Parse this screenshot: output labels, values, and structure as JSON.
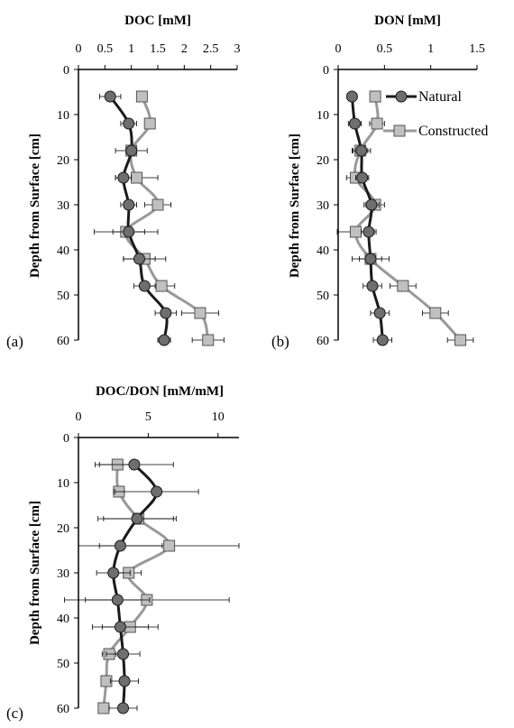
{
  "chart_data": [
    {
      "type": "line",
      "panel_label": "(a)",
      "title": "DOC [mM]",
      "ylabel": "Depth from Surface [cm]",
      "xlim": [
        0,
        3
      ],
      "ylim": [
        0,
        60
      ],
      "x_ticks": [
        "0",
        "0.5",
        "1",
        "1.5",
        "2",
        "2.5",
        "3"
      ],
      "y_ticks": [
        "0",
        "10",
        "20",
        "30",
        "40",
        "50",
        "60"
      ],
      "series": [
        {
          "name": "Natural",
          "color": "#1a1a1a",
          "marker": "circle",
          "depth": [
            6,
            12,
            18,
            24,
            30,
            36,
            42,
            48,
            54,
            60
          ],
          "x": [
            0.6,
            0.95,
            1.0,
            0.85,
            0.95,
            0.95,
            1.15,
            1.25,
            1.65,
            1.62
          ],
          "err": [
            0.2,
            0.15,
            0.1,
            0.15,
            0.15,
            0.3,
            0.3,
            0.2,
            0.2,
            0.12
          ]
        },
        {
          "name": "Constructed",
          "color": "#999999",
          "marker": "square",
          "depth": [
            6,
            12,
            18,
            24,
            30,
            36,
            42,
            48,
            54,
            60
          ],
          "x": [
            1.2,
            1.35,
            1.0,
            1.1,
            1.5,
            0.9,
            1.25,
            1.57,
            2.3,
            2.45
          ],
          "err": [
            0.0,
            0.1,
            0.3,
            0.4,
            0.25,
            0.6,
            0.4,
            0.25,
            0.35,
            0.3
          ]
        }
      ]
    },
    {
      "type": "line",
      "panel_label": "(b)",
      "title": "DON [mM]",
      "ylabel": "Depth from Surface [cm]",
      "xlim": [
        0,
        1.5
      ],
      "ylim": [
        0,
        60
      ],
      "x_ticks": [
        "0",
        "0.5",
        "1",
        "1.5"
      ],
      "y_ticks": [
        "0",
        "10",
        "20",
        "30",
        "40",
        "50",
        "60"
      ],
      "legend": [
        "Natural",
        "Constructed"
      ],
      "legend_position": "top-right",
      "series": [
        {
          "name": "Natural",
          "color": "#1a1a1a",
          "marker": "circle",
          "depth": [
            6,
            12,
            18,
            24,
            30,
            36,
            42,
            48,
            54,
            60
          ],
          "x": [
            0.15,
            0.18,
            0.25,
            0.26,
            0.36,
            0.33,
            0.35,
            0.37,
            0.45,
            0.48
          ],
          "err": [
            0.05,
            0.07,
            0.1,
            0.07,
            0.08,
            0.08,
            0.12,
            0.1,
            0.1,
            0.1
          ]
        },
        {
          "name": "Constructed",
          "color": "#999999",
          "marker": "square",
          "depth": [
            6,
            12,
            18,
            24,
            30,
            36,
            42,
            48,
            54,
            60
          ],
          "x": [
            0.4,
            0.42,
            0.24,
            0.19,
            0.4,
            0.19,
            0.35,
            0.7,
            1.05,
            1.32
          ],
          "err": [
            0.05,
            0.08,
            0.08,
            0.1,
            0.1,
            0.2,
            0.2,
            0.14,
            0.14,
            0.14
          ]
        }
      ]
    },
    {
      "type": "line",
      "panel_label": "(c)",
      "title": "DOC/DON [mM/mM]",
      "ylabel": "Depth from Surface [cm]",
      "xlim": [
        0,
        11.5
      ],
      "ylim": [
        0,
        60
      ],
      "x_ticks": [
        "0",
        "5",
        "10"
      ],
      "x_tick_values": [
        0,
        5,
        10
      ],
      "y_ticks": [
        "0",
        "10",
        "20",
        "30",
        "40",
        "50",
        "60"
      ],
      "series": [
        {
          "name": "Natural",
          "color": "#1a1a1a",
          "marker": "circle",
          "depth": [
            6,
            12,
            18,
            24,
            30,
            36,
            42,
            48,
            54,
            60
          ],
          "x": [
            4.0,
            5.6,
            4.2,
            3.0,
            2.5,
            2.8,
            3.0,
            3.2,
            3.3,
            3.2
          ],
          "err": [
            2.8,
            3.0,
            2.8,
            3.0,
            1.2,
            2.3,
            2.0,
            1.2,
            1.0,
            1.0
          ]
        },
        {
          "name": "Constructed",
          "color": "#999999",
          "marker": "square",
          "depth": [
            6,
            12,
            18,
            24,
            30,
            36,
            42,
            48,
            54,
            60
          ],
          "x": [
            2.8,
            2.9,
            4.3,
            6.5,
            3.6,
            4.9,
            3.7,
            2.2,
            2.0,
            1.8
          ],
          "err": [
            1.3,
            0.4,
            2.5,
            5.0,
            0.9,
            5.9,
            2.0,
            0.5,
            0.3,
            0.3
          ]
        }
      ]
    }
  ]
}
